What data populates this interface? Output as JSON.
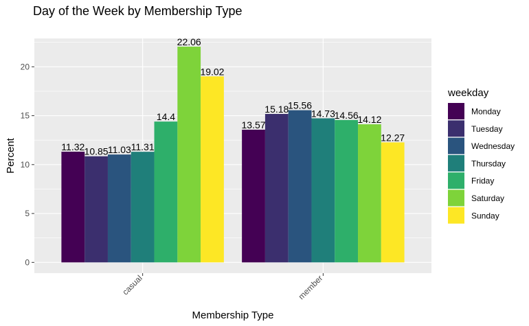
{
  "chart_data": {
    "type": "bar",
    "title": "Day of the Week by Membership Type",
    "xlabel": "Membership Type",
    "ylabel": "Percent",
    "categories": [
      "casual",
      "member"
    ],
    "ylim": [
      -1.1,
      22.9
    ],
    "yticks": [
      0,
      5,
      10,
      15,
      20
    ],
    "grid": true,
    "legend": {
      "title": "weekday",
      "position": "right"
    },
    "series": [
      {
        "name": "Monday",
        "color": "#440154",
        "values": [
          11.32,
          13.57
        ],
        "labels": [
          "11.32",
          "13.57"
        ]
      },
      {
        "name": "Tuesday",
        "color": "#3B2F6E",
        "values": [
          10.85,
          15.18
        ],
        "labels": [
          "10.85",
          "15.18"
        ]
      },
      {
        "name": "Wednesday",
        "color": "#2A547E",
        "values": [
          11.03,
          15.56
        ],
        "labels": [
          "11.03",
          "15.56"
        ]
      },
      {
        "name": "Thursday",
        "color": "#1F7F7A",
        "values": [
          11.31,
          14.73
        ],
        "labels": [
          "11.31",
          "14.73"
        ]
      },
      {
        "name": "Friday",
        "color": "#2EAF6A",
        "values": [
          14.4,
          14.56
        ],
        "labels": [
          "14.4",
          "14.56"
        ]
      },
      {
        "name": "Saturday",
        "color": "#7ED33A",
        "values": [
          22.06,
          14.12
        ],
        "labels": [
          "22.06",
          "14.12"
        ]
      },
      {
        "name": "Sunday",
        "color": "#FDE725",
        "values": [
          19.02,
          12.27
        ],
        "labels": [
          "19.02",
          "12.27"
        ]
      }
    ]
  }
}
